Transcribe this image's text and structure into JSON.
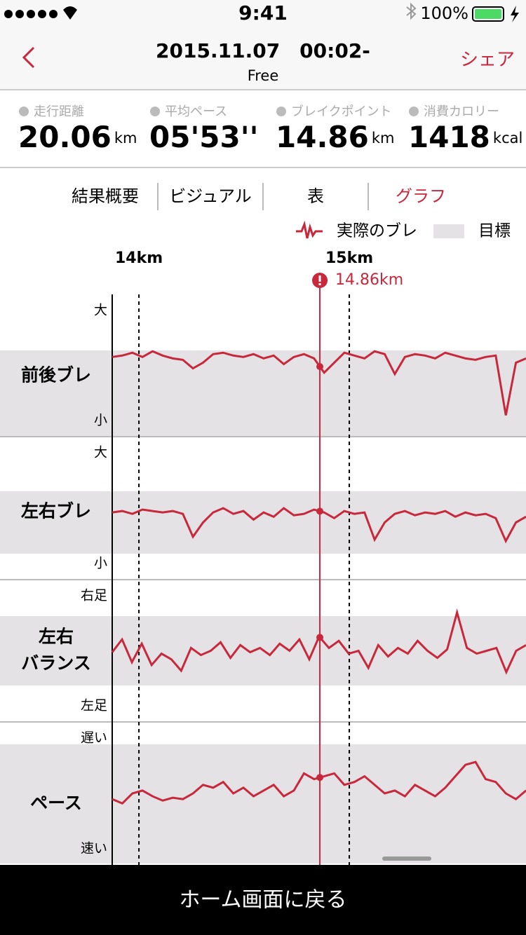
{
  "status": {
    "time": "9:41",
    "battery": "100%"
  },
  "header": {
    "title": "2015.11.07　00:02-",
    "subtitle": "Free",
    "action": "シェア"
  },
  "stats": [
    {
      "label": "走行距離",
      "value": "20.06",
      "unit": "km"
    },
    {
      "label": "平均ペース",
      "value": "05'53''"
    },
    {
      "label": "ブレイクポイント",
      "value": "14.86",
      "unit": "km"
    },
    {
      "label": "消費カロリー",
      "value": "1418",
      "unit": "kcal"
    }
  ],
  "tabs": {
    "items": [
      "結果概要",
      "ビジュアル",
      "表",
      "グラフ"
    ],
    "active": 3,
    "active_color": "#c8283c"
  },
  "legend": {
    "items": [
      "実際のブレ",
      "目標"
    ]
  },
  "graph": {
    "xlim": [
      13.873,
      15.84
    ],
    "xticks": [
      {
        "value": 14,
        "label": "14km"
      },
      {
        "value": 15,
        "label": "15km"
      }
    ],
    "break": {
      "value": 14.86,
      "label": "14.86km"
    },
    "line_color": "#c8283c",
    "panels": [
      {
        "label": [
          "前後ブレ"
        ],
        "top": "大",
        "bottom": "小",
        "ylim": [
          0,
          100
        ],
        "values": [
          56,
          57,
          59,
          56,
          60,
          57,
          55,
          54,
          48,
          52,
          58,
          59,
          57,
          56,
          58,
          55,
          57,
          51,
          56,
          58,
          55,
          45,
          52,
          59,
          57,
          55,
          60,
          58,
          44,
          56,
          58,
          57,
          55,
          59,
          57,
          55,
          54,
          56,
          57,
          15,
          52,
          55
        ]
      },
      {
        "label": [
          "左右ブレ"
        ],
        "top": "大",
        "bottom": "小",
        "ylim": [
          0,
          100
        ],
        "values": [
          47,
          48,
          46,
          49,
          48,
          47,
          48,
          46,
          30,
          40,
          47,
          50,
          46,
          48,
          42,
          47,
          44,
          50,
          45,
          46,
          49,
          47,
          43,
          48,
          46,
          47,
          28,
          40,
          46,
          48,
          45,
          47,
          46,
          48,
          44,
          47,
          45,
          46,
          43,
          27,
          40,
          44
        ]
      },
      {
        "label": [
          "左右",
          "バランス"
        ],
        "top": "右足",
        "bottom": "左足",
        "ylim": [
          0,
          100
        ],
        "values": [
          49,
          58,
          42,
          55,
          40,
          48,
          44,
          36,
          52,
          47,
          50,
          56,
          45,
          54,
          49,
          52,
          47,
          55,
          50,
          58,
          44,
          60,
          52,
          57,
          48,
          50,
          38,
          54,
          46,
          52,
          48,
          57,
          50,
          45,
          51,
          77,
          52,
          48,
          50,
          52,
          35,
          50,
          54
        ]
      },
      {
        "label": [
          "ペース"
        ],
        "top": "遅い",
        "bottom": "速い",
        "ylim": [
          0,
          100
        ],
        "values": [
          46,
          43,
          50,
          52,
          48,
          45,
          47,
          46,
          50,
          56,
          54,
          58,
          50,
          54,
          48,
          52,
          56,
          48,
          52,
          64,
          60,
          62,
          64,
          56,
          58,
          62,
          56,
          50,
          52,
          48,
          56,
          52,
          48,
          54,
          62,
          70,
          72,
          60,
          58,
          50,
          46,
          52
        ]
      }
    ]
  },
  "footer": {
    "button": "ホーム画面に戻る"
  }
}
